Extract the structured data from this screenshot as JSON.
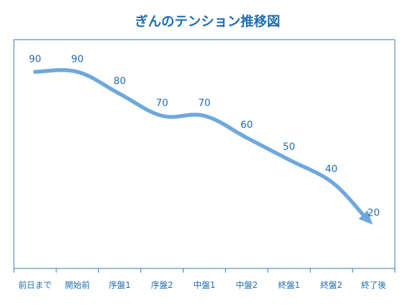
{
  "chart_data": {
    "type": "line",
    "title": "ぎんのテンション推移図",
    "xlabel": "",
    "ylabel": "",
    "categories": [
      "前日まで",
      "開始前",
      "序盤1",
      "序盤2",
      "中盤1",
      "中盤2",
      "終盤1",
      "終盤2",
      "終了後"
    ],
    "series": [
      {
        "values": [
          90,
          90,
          80,
          70,
          70,
          60,
          50,
          40,
          20
        ]
      }
    ],
    "ylim": [
      0,
      100
    ],
    "grid": false,
    "legend": "none",
    "smooth": true,
    "end_arrow": true,
    "colors": {
      "line": "#6fa8dc",
      "text": "#1f6db2",
      "axis": "#2e75b6"
    }
  }
}
